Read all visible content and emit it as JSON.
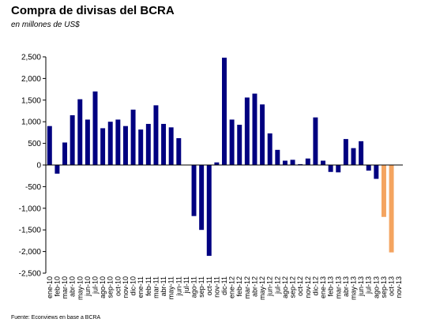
{
  "chart_data": {
    "type": "bar",
    "title": "Compra de divisas del BCRA",
    "subtitle": "en millones de US$",
    "source": "Fuente: Econviews en base a BCRA",
    "ylim": [
      -2500,
      2500
    ],
    "yticks": [
      2500,
      2000,
      1500,
      1000,
      500,
      0,
      -500,
      -1000,
      -1500,
      -2000,
      -2500
    ],
    "ytick_labels": [
      "2,500",
      "2,000",
      "1,500",
      "1,000",
      "500",
      "0",
      "-500",
      "-1,000",
      "-1,500",
      "-2,000",
      "-2,500"
    ],
    "grid": false,
    "legend": "none",
    "colors": {
      "bar": "#000080",
      "highlight": "#F4A460"
    },
    "categories": [
      "ene-10",
      "feb-10",
      "mar-10",
      "abr-10",
      "may-10",
      "jun-10",
      "jul-10",
      "ago-10",
      "sep-10",
      "oct-10",
      "nov-10",
      "dic-10",
      "ene-11",
      "feb-11",
      "mar-11",
      "abr-11",
      "may-11",
      "jun-11",
      "jul-11",
      "ago-11",
      "sep-11",
      "oct-11",
      "nov-11",
      "dic-11",
      "ene-12",
      "feb-12",
      "mar-12",
      "abr-12",
      "may-12",
      "jun-12",
      "jul-12",
      "ago-12",
      "sep-12",
      "oct-12",
      "nov-12",
      "dic-12",
      "ene-13",
      "feb-13",
      "mar-13",
      "abr-13",
      "may-13",
      "jun-13",
      "jul-13",
      "ago-13",
      "sep-13",
      "oct-13",
      "nov-13"
    ],
    "values": [
      900,
      -200,
      520,
      1150,
      1520,
      1050,
      1700,
      850,
      1000,
      1050,
      900,
      1280,
      820,
      950,
      1380,
      950,
      870,
      620,
      0,
      -1180,
      -1500,
      -2100,
      60,
      2480,
      1050,
      930,
      1560,
      1650,
      1400,
      730,
      350,
      100,
      120,
      20,
      150,
      1100,
      100,
      -160,
      -170,
      600,
      390,
      550,
      -130,
      -320,
      -1200,
      -2020,
      0
    ],
    "highlight_from_index": 44
  }
}
